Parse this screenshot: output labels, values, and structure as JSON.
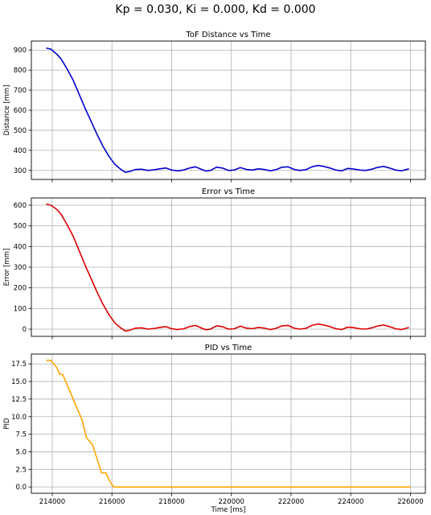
{
  "figure": {
    "suptitle": "Kp = 0.030, Ki = 0.000, Kd = 0.000"
  },
  "chart_data": [
    {
      "type": "line",
      "title": "ToF Distance vs Time",
      "xlabel": "",
      "ylabel": "Distance [mm]",
      "xlim": [
        213300,
        226500
      ],
      "ylim": [
        255,
        945
      ],
      "yticks": [
        300,
        400,
        500,
        600,
        700,
        800,
        900
      ],
      "xticks": [
        214000,
        216000,
        218000,
        220000,
        222000,
        224000,
        226000
      ],
      "xtick_labels_visible": false,
      "grid": true,
      "color": "#0000cc",
      "x": [
        213800,
        213950,
        214150,
        214300,
        214500,
        214700,
        214900,
        215100,
        215300,
        215500,
        215700,
        215900,
        216100,
        216300,
        216450,
        216600,
        216800,
        217000,
        217200,
        217400,
        217600,
        217800,
        218000,
        218200,
        218400,
        218600,
        218800,
        219000,
        219150,
        219300,
        219500,
        219700,
        219900,
        220100,
        220300,
        220500,
        220700,
        220900,
        221100,
        221300,
        221500,
        221700,
        221900,
        222100,
        222300,
        222500,
        222700,
        222900,
        223100,
        223300,
        223500,
        223700,
        223900,
        224100,
        224300,
        224500,
        224700,
        224900,
        225100,
        225300,
        225500,
        225700,
        225950
      ],
      "y": [
        910,
        905,
        880,
        855,
        805,
        750,
        680,
        610,
        545,
        480,
        420,
        370,
        330,
        305,
        291,
        295,
        305,
        306,
        300,
        303,
        308,
        312,
        302,
        298,
        302,
        312,
        318,
        305,
        297,
        300,
        316,
        312,
        300,
        302,
        314,
        305,
        302,
        308,
        305,
        298,
        304,
        316,
        318,
        305,
        300,
        304,
        318,
        325,
        320,
        312,
        302,
        298,
        310,
        307,
        302,
        300,
        306,
        315,
        320,
        312,
        302,
        298,
        308
      ]
    },
    {
      "type": "line",
      "title": "Error vs Time",
      "xlabel": "",
      "ylabel": "Error [mm]",
      "xlim": [
        213300,
        226500
      ],
      "ylim": [
        -35,
        635
      ],
      "yticks": [
        0,
        100,
        200,
        300,
        400,
        500,
        600
      ],
      "xticks": [
        214000,
        216000,
        218000,
        220000,
        222000,
        224000,
        226000
      ],
      "xtick_labels_visible": false,
      "grid": true,
      "color": "#dd0000",
      "x": [
        213800,
        213950,
        214150,
        214300,
        214500,
        214700,
        214900,
        215100,
        215300,
        215500,
        215700,
        215900,
        216100,
        216300,
        216450,
        216600,
        216800,
        217000,
        217200,
        217400,
        217600,
        217800,
        218000,
        218200,
        218400,
        218600,
        218800,
        219000,
        219150,
        219300,
        219500,
        219700,
        219900,
        220100,
        220300,
        220500,
        220700,
        220900,
        221100,
        221300,
        221500,
        221700,
        221900,
        222100,
        222300,
        222500,
        222700,
        222900,
        223100,
        223300,
        223500,
        223700,
        223900,
        224100,
        224300,
        224500,
        224700,
        224900,
        225100,
        225300,
        225500,
        225700,
        225950
      ],
      "y": [
        605,
        600,
        580,
        555,
        505,
        450,
        380,
        310,
        245,
        180,
        120,
        70,
        30,
        5,
        -9,
        -5,
        5,
        6,
        0,
        3,
        8,
        12,
        2,
        -2,
        2,
        12,
        18,
        5,
        -3,
        0,
        16,
        12,
        0,
        2,
        14,
        5,
        2,
        8,
        5,
        -2,
        4,
        16,
        18,
        5,
        0,
        4,
        18,
        25,
        20,
        12,
        2,
        -2,
        10,
        7,
        2,
        0,
        6,
        15,
        20,
        12,
        2,
        -2,
        8
      ]
    },
    {
      "type": "line",
      "title": "PID vs Time",
      "xlabel": "Time [ms]",
      "ylabel": "PID",
      "xlim": [
        213300,
        226500
      ],
      "ylim": [
        -0.9,
        18.9
      ],
      "yticks": [
        0.0,
        2.5,
        5.0,
        7.5,
        10.0,
        12.5,
        15.0,
        17.5
      ],
      "ytick_labels": [
        "0.0",
        "2.5",
        "5.0",
        "7.5",
        "10.0",
        "12.5",
        "15.0",
        "17.5"
      ],
      "xticks": [
        214000,
        216000,
        218000,
        220000,
        222000,
        224000,
        226000
      ],
      "xtick_labels": [
        "214000",
        "216000",
        "218000",
        "220000",
        "222000",
        "224000",
        "226000"
      ],
      "grid": true,
      "color": "#ffa500",
      "x": [
        213800,
        213950,
        214050,
        214150,
        214250,
        214350,
        214450,
        214600,
        214800,
        215000,
        215150,
        215350,
        215500,
        215650,
        215800,
        215900,
        216050,
        216200,
        217000,
        218000,
        220000,
        222000,
        224000,
        226000
      ],
      "y": [
        18.0,
        18.0,
        17.5,
        17.0,
        16.0,
        16.0,
        15.0,
        13.5,
        11.5,
        9.5,
        7.0,
        6.0,
        4.0,
        2.0,
        2.0,
        1.0,
        0.0,
        0.0,
        0.0,
        0.0,
        0.0,
        0.0,
        0.0,
        0.0
      ]
    }
  ]
}
